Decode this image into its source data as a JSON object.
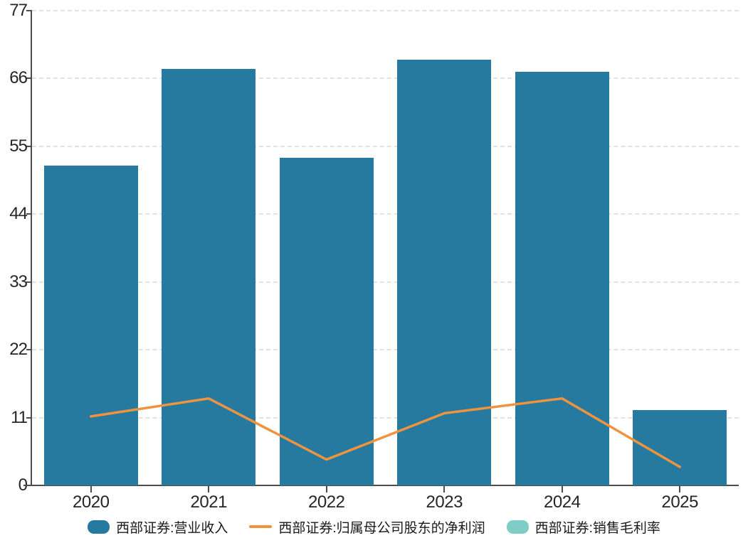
{
  "chart_data": {
    "type": "bar",
    "categories": [
      "2020",
      "2021",
      "2022",
      "2023",
      "2024",
      "2025"
    ],
    "series": [
      {
        "name": "西部证券:营业收入",
        "type": "bar",
        "color": "#26799f",
        "values": [
          51.9,
          67.6,
          53.1,
          69.0,
          67.1,
          12.2
        ]
      },
      {
        "name": "西部证券:归属母公司股东的净利润",
        "type": "line",
        "color": "#ee9340",
        "values": [
          11.2,
          14.1,
          4.2,
          11.7,
          14.1,
          3.0
        ]
      },
      {
        "name": "西部证券:销售毛利率",
        "type": "bar",
        "color": "#7fcdc7",
        "values": []
      }
    ],
    "title": "",
    "xlabel": "",
    "ylabel": "",
    "ylim": [
      0,
      77
    ],
    "yticks": [
      0,
      11,
      22,
      33,
      44,
      55,
      66,
      77
    ],
    "grid": "horizontal-dashed",
    "legend_position": "bottom"
  },
  "legend": {
    "items": [
      {
        "label": "西部证券:营业收入",
        "marker": "rect",
        "color": "#26799f"
      },
      {
        "label": "西部证券:归属母公司股东的净利润",
        "marker": "line",
        "color": "#ee9340"
      },
      {
        "label": "西部证券:销售毛利率",
        "marker": "rect",
        "color": "#7fcdc7"
      }
    ]
  },
  "colors": {
    "bar_blue": "#26799f",
    "line_orange": "#ee9340",
    "teal": "#7fcdc7",
    "axis": "#4d4d4d",
    "gridline": "#e2e2e2",
    "text": "#262626"
  }
}
